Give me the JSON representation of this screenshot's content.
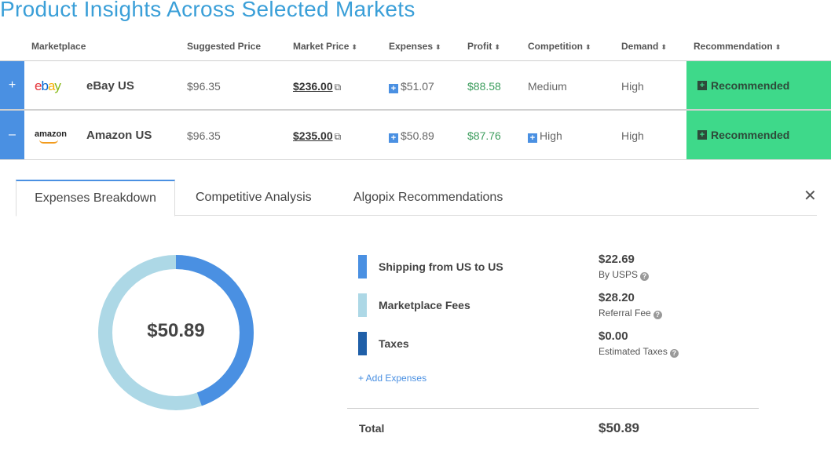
{
  "page_title": "Product Insights Across Selected Markets",
  "table": {
    "headers": {
      "marketplace": "Marketplace",
      "suggested_price": "Suggested Price",
      "market_price": "Market Price",
      "expenses": "Expenses",
      "profit": "Profit",
      "competition": "Competition",
      "demand": "Demand",
      "recommendation": "Recommendation"
    },
    "rows": [
      {
        "toggle": "+",
        "logo": "ebay",
        "marketplace": "eBay US",
        "suggested_price": "$96.35",
        "market_price": "$236.00",
        "expenses": "$51.07",
        "profit": "$88.58",
        "competition": "Medium",
        "demand": "High",
        "recommendation": "Recommended"
      },
      {
        "toggle": "–",
        "logo": "amazon",
        "marketplace": "Amazon US",
        "suggested_price": "$96.35",
        "market_price": "$235.00",
        "expenses": "$50.89",
        "profit": "$87.76",
        "competition": "High",
        "demand": "High",
        "recommendation": "Recommended"
      }
    ]
  },
  "tabs": [
    {
      "label": "Expenses Breakdown",
      "active": true
    },
    {
      "label": "Competitive Analysis",
      "active": false
    },
    {
      "label": "Algopix Recommendations",
      "active": false
    }
  ],
  "close_icon": "✕",
  "expenses": {
    "total_center": "$50.89",
    "items": [
      {
        "name": "Shipping from US to US",
        "value": "$22.69",
        "sub": "By USPS",
        "color": "#4a90e2",
        "amount": 22.69
      },
      {
        "name": "Marketplace Fees",
        "value": "$28.20",
        "sub": "Referral Fee",
        "color": "#add8e6",
        "amount": 28.2
      },
      {
        "name": "Taxes",
        "value": "$0.00",
        "sub": "Estimated Taxes",
        "color": "#1f5fa8",
        "amount": 0.0
      }
    ],
    "add_label": "+ Add Expenses",
    "total_label": "Total",
    "total_value": "$50.89"
  },
  "colors": {
    "accent": "#4a90e2",
    "title": "#3a9fd8",
    "recommended": "#3ed98a",
    "profit": "#3c9d5d"
  }
}
